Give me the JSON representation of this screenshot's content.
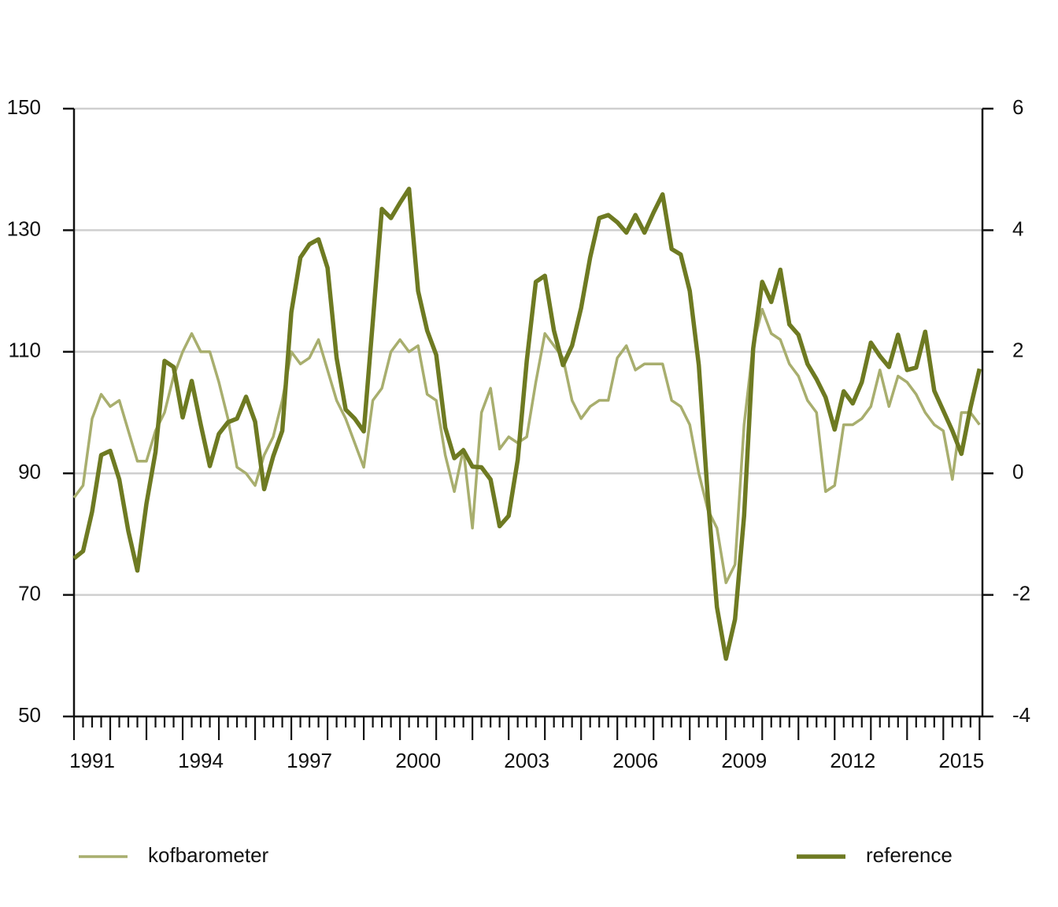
{
  "chart_data": {
    "type": "line",
    "x": [
      1991,
      1991.25,
      1991.5,
      1991.75,
      1992,
      1992.25,
      1992.5,
      1992.75,
      1993,
      1993.25,
      1993.5,
      1993.75,
      1994,
      1994.25,
      1994.5,
      1994.75,
      1995,
      1995.25,
      1995.5,
      1995.75,
      1996,
      1996.25,
      1996.5,
      1996.75,
      1997,
      1997.25,
      1997.5,
      1997.75,
      1998,
      1998.25,
      1998.5,
      1998.75,
      1999,
      1999.25,
      1999.5,
      1999.75,
      2000,
      2000.25,
      2000.5,
      2000.75,
      2001,
      2001.25,
      2001.5,
      2001.75,
      2002,
      2002.25,
      2002.5,
      2002.75,
      2003,
      2003.25,
      2003.5,
      2003.75,
      2004,
      2004.25,
      2004.5,
      2004.75,
      2005,
      2005.25,
      2005.5,
      2005.75,
      2006,
      2006.25,
      2006.5,
      2006.75,
      2007,
      2007.25,
      2007.5,
      2007.75,
      2008,
      2008.25,
      2008.5,
      2008.75,
      2009,
      2009.25,
      2009.5,
      2009.75,
      2010,
      2010.25,
      2010.5,
      2010.75,
      2011,
      2011.25,
      2011.5,
      2011.75,
      2012,
      2012.25,
      2012.5,
      2012.75,
      2013,
      2013.25,
      2013.5,
      2013.75,
      2014,
      2014.25,
      2014.5,
      2014.75,
      2015,
      2015.25,
      2015.5,
      2015.75,
      2016
    ],
    "series": [
      {
        "name": "kofbarometer",
        "color": "#a8ae6e",
        "axis": "y",
        "values": [
          86,
          88,
          99,
          103,
          101,
          102,
          97,
          92,
          92,
          97,
          100,
          106,
          110,
          113,
          110,
          110,
          105,
          99,
          91,
          90,
          88,
          93,
          96,
          102,
          110,
          108,
          109,
          112,
          107,
          102,
          99,
          95,
          91,
          102,
          104,
          110,
          112,
          110,
          111,
          103,
          102,
          93,
          87,
          94,
          81,
          100,
          104,
          94,
          96,
          95,
          96,
          105,
          113,
          111,
          109,
          102,
          99,
          101,
          102,
          102,
          109,
          111,
          107,
          108,
          108,
          108,
          102,
          101,
          98,
          90,
          84,
          81,
          72,
          75,
          98,
          111,
          117,
          113,
          112,
          108,
          106,
          102,
          100,
          87,
          88,
          98,
          98,
          99,
          101,
          107,
          101,
          106,
          105,
          103,
          100,
          98,
          97,
          89,
          100,
          100,
          98
        ]
      },
      {
        "name": "reference",
        "color": "#6e7a22",
        "axis": "y2",
        "values": [
          -1.4,
          -1.28,
          -0.63,
          0.3,
          0.37,
          -0.1,
          -0.95,
          -1.6,
          -0.5,
          0.35,
          1.85,
          1.75,
          0.92,
          1.52,
          0.8,
          0.12,
          0.65,
          0.84,
          0.9,
          1.26,
          0.85,
          -0.26,
          0.28,
          0.7,
          2.65,
          3.55,
          3.77,
          3.85,
          3.38,
          1.9,
          1.05,
          0.9,
          0.69,
          2.5,
          4.35,
          4.2,
          4.45,
          4.68,
          3.0,
          2.35,
          1.95,
          0.75,
          0.25,
          0.38,
          0.11,
          0.1,
          -0.1,
          -0.87,
          -0.7,
          0.22,
          1.85,
          3.15,
          3.25,
          2.35,
          1.78,
          2.1,
          2.72,
          3.55,
          4.2,
          4.25,
          4.13,
          3.96,
          4.25,
          3.96,
          4.29,
          4.59,
          3.69,
          3.6,
          3.0,
          1.78,
          -0.4,
          -2.2,
          -3.05,
          -2.4,
          -0.7,
          2.05,
          3.15,
          2.82,
          3.35,
          2.45,
          2.28,
          1.8,
          1.55,
          1.25,
          0.72,
          1.35,
          1.15,
          1.5,
          2.15,
          1.93,
          1.75,
          2.28,
          1.7,
          1.74,
          2.33,
          1.36,
          1.03,
          0.7,
          0.32,
          1.08,
          1.72
        ]
      }
    ],
    "xlim": [
      1991,
      2016.08
    ],
    "xticks": [
      {
        "value": 1991.5,
        "label": "1991"
      },
      {
        "value": 1994.5,
        "label": "1994"
      },
      {
        "value": 1997.5,
        "label": "1997"
      },
      {
        "value": 2000.5,
        "label": "2000"
      },
      {
        "value": 2003.5,
        "label": "2003"
      },
      {
        "value": 2006.5,
        "label": "2006"
      },
      {
        "value": 2009.5,
        "label": "2009"
      },
      {
        "value": 2012.5,
        "label": "2012"
      },
      {
        "value": 2015.5,
        "label": "2015"
      }
    ],
    "ylim": [
      50,
      150
    ],
    "yticks": [
      50,
      70,
      90,
      110,
      130,
      150
    ],
    "y2lim": [
      -4,
      6
    ],
    "y2ticks": [
      -4,
      -2,
      0,
      2,
      4,
      6
    ],
    "grid": true,
    "legend": "bottom"
  }
}
